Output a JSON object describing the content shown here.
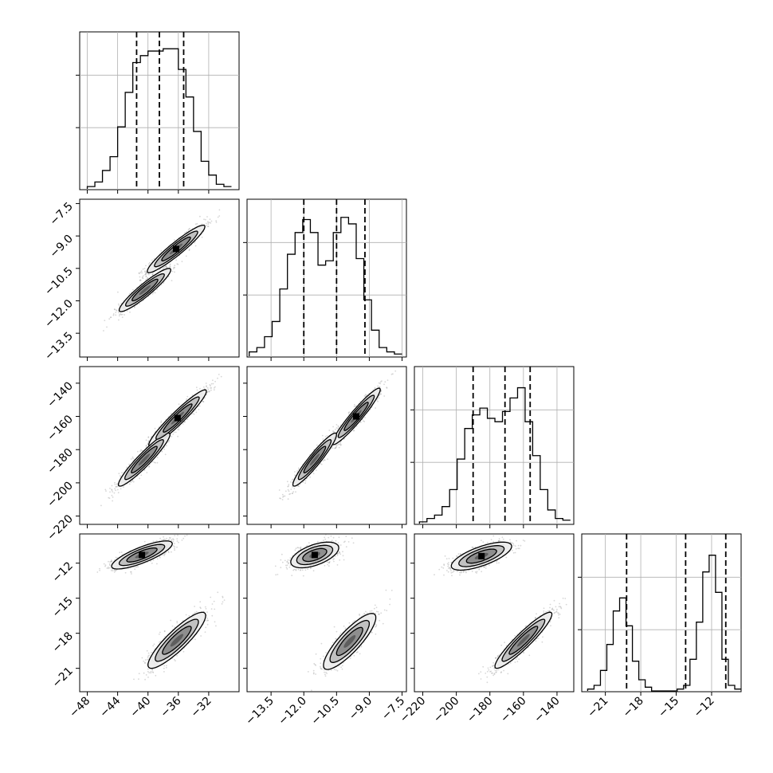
{
  "chart_data": {
    "type": "corner",
    "grid": true,
    "n_parameters": 4,
    "colors": {
      "line": "#000000",
      "points": "#8c8c8c",
      "fill_outer": "#ededed",
      "fill_mid": "#bdbdbd",
      "fill_inner": "#8a8a8a",
      "peak": "#000000"
    },
    "params": [
      {
        "lim": [
          -49,
          -28
        ],
        "ticks": [
          -48,
          -44,
          -40,
          -36,
          -32
        ],
        "tick_labels": [
          "−48",
          "−44",
          "−40",
          "−36",
          "−32"
        ],
        "quantiles": [
          -41.5,
          -38.5,
          -35.3
        ]
      },
      {
        "lim": [
          -14.6,
          -7.3
        ],
        "ticks": [
          -13.5,
          -12.0,
          -10.5,
          -9.0,
          -7.5
        ],
        "tick_labels": [
          "−13.5",
          "−12.0",
          "−10.5",
          "−9.0",
          "−7.5"
        ],
        "quantiles": [
          -12.0,
          -10.5,
          -9.2
        ]
      },
      {
        "lim": [
          -225,
          -130
        ],
        "ticks": [
          -220,
          -200,
          -180,
          -160,
          -140
        ],
        "tick_labels": [
          "−220",
          "−200",
          "−180",
          "−160",
          "−140"
        ],
        "quantiles": [
          -190,
          -171,
          -156
        ]
      },
      {
        "lim": [
          -23,
          -9.5
        ],
        "ticks": [
          -21,
          -18,
          -15,
          -12
        ],
        "tick_labels": [
          "−21",
          "−18",
          "−15",
          "−12"
        ],
        "quantiles": [
          -19.2,
          -14.2,
          -10.8
        ]
      }
    ],
    "histograms": [
      {
        "param": 0,
        "edges_lim": [
          -48,
          -29
        ],
        "counts": [
          1,
          3,
          8,
          14,
          27,
          42,
          55,
          58,
          60,
          60,
          61,
          61,
          52,
          40,
          25,
          12,
          6,
          2,
          1
        ],
        "ylim": [
          0,
          68
        ]
      },
      {
        "param": 1,
        "edges_lim": [
          -14.5,
          -7.5
        ],
        "counts": [
          2,
          4,
          9,
          16,
          31,
          47,
          57,
          63,
          57,
          42,
          44,
          57,
          64,
          61,
          45,
          26,
          12,
          4,
          2,
          1
        ],
        "ylim": [
          0,
          72
        ]
      },
      {
        "param": 2,
        "edges_lim": [
          -222,
          -132
        ],
        "counts": [
          1,
          3,
          5,
          10,
          20,
          38,
          56,
          64,
          68,
          62,
          60,
          66,
          74,
          80,
          60,
          40,
          20,
          8,
          3,
          2
        ],
        "ylim": [
          0,
          92
        ]
      },
      {
        "param": 3,
        "edges_lim": [
          -22.5,
          -9.5
        ],
        "counts": [
          1,
          3,
          11,
          25,
          43,
          50,
          35,
          16,
          6,
          2,
          0,
          0,
          0,
          0,
          1,
          3,
          17,
          37,
          64,
          73,
          53,
          17,
          3,
          1
        ],
        "ylim": [
          0,
          84
        ]
      }
    ],
    "pairs": [
      {
        "x": 0,
        "y": 1,
        "clusters": [
          {
            "mean": [
              -36.3,
              -9.6
            ],
            "sd": [
              1.9,
              0.55
            ],
            "rho": 0.94,
            "w": 0.55
          },
          {
            "mean": [
              -40.4,
              -11.5
            ],
            "sd": [
              1.7,
              0.5
            ],
            "rho": 0.93,
            "w": 0.45
          }
        ]
      },
      {
        "x": 0,
        "y": 2,
        "clusters": [
          {
            "mean": [
              -36.1,
              -161
            ],
            "sd": [
              1.9,
              8.5
            ],
            "rho": 0.95,
            "w": 0.55
          },
          {
            "mean": [
              -40.5,
              -186
            ],
            "sd": [
              1.7,
              8
            ],
            "rho": 0.94,
            "w": 0.45
          }
        ]
      },
      {
        "x": 1,
        "y": 2,
        "clusters": [
          {
            "mean": [
              -9.6,
              -160
            ],
            "sd": [
              0.55,
              8.5
            ],
            "rho": 0.95,
            "w": 0.55
          },
          {
            "mean": [
              -11.5,
              -186
            ],
            "sd": [
              0.5,
              8
            ],
            "rho": 0.94,
            "w": 0.45
          }
        ]
      },
      {
        "x": 0,
        "y": 3,
        "clusters": [
          {
            "mean": [
              -40.8,
              -11.3
            ],
            "sd": [
              2.0,
              0.6
            ],
            "rho": 0.8,
            "w": 0.5
          },
          {
            "mean": [
              -36.2,
              -18.6
            ],
            "sd": [
              1.9,
              1.2
            ],
            "rho": 0.88,
            "w": 0.5
          }
        ]
      },
      {
        "x": 1,
        "y": 3,
        "clusters": [
          {
            "mean": [
              -11.5,
              -11.3
            ],
            "sd": [
              0.55,
              0.55
            ],
            "rho": 0.55,
            "w": 0.5
          },
          {
            "mean": [
              -9.9,
              -18.7
            ],
            "sd": [
              0.6,
              1.2
            ],
            "rho": 0.85,
            "w": 0.5
          }
        ]
      },
      {
        "x": 2,
        "y": 3,
        "clusters": [
          {
            "mean": [
              -185,
              -11.4
            ],
            "sd": [
              9,
              0.6
            ],
            "rho": 0.7,
            "w": 0.5
          },
          {
            "mean": [
              -160,
              -18.6
            ],
            "sd": [
              8.5,
              1.2
            ],
            "rho": 0.93,
            "w": 0.5
          }
        ]
      }
    ]
  }
}
